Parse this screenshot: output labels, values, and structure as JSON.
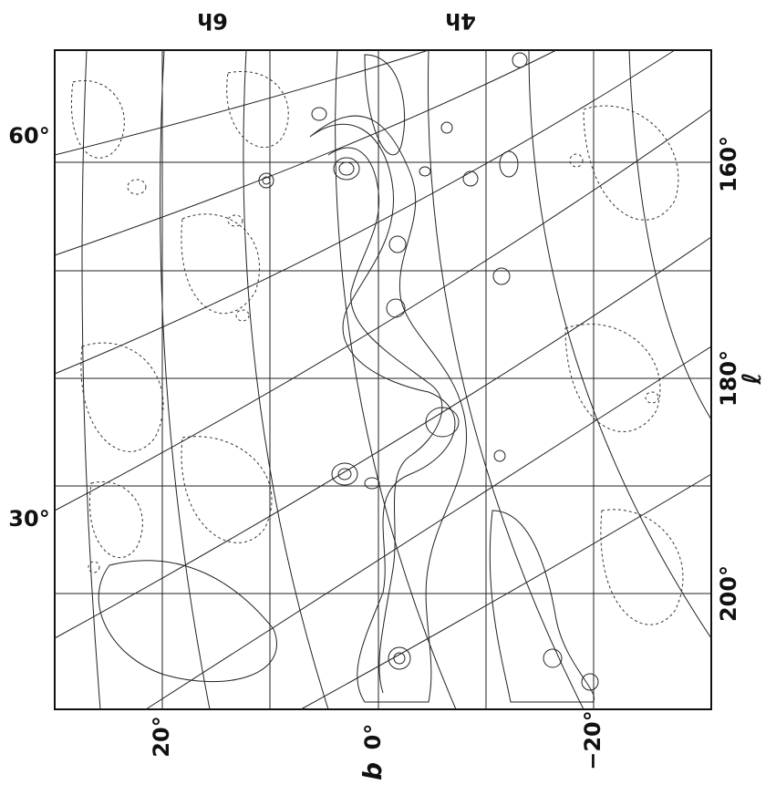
{
  "top_labels": [
    "6h",
    "4h"
  ],
  "left_labels": [
    "60°",
    "30°"
  ],
  "right_labels": [
    "160°",
    "180°",
    "200°"
  ],
  "right_axis": "ℓ",
  "bottom_labels": [
    "20°",
    "0°",
    "−20°"
  ],
  "bottom_axis": "b"
}
